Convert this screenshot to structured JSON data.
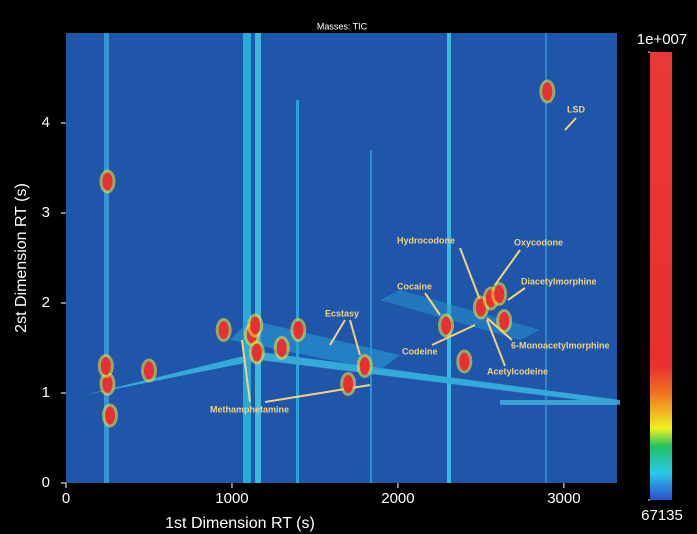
{
  "chart_data": {
    "type": "contour",
    "title": "Masses: TIC",
    "x_label": "1st Dimension RT (s)",
    "y_label": "2st Dimension RT (s)",
    "xlim": [
      0,
      3320
    ],
    "xticks": [
      0,
      1000,
      2000,
      3000
    ],
    "ylim": [
      0,
      5
    ],
    "yticks": [
      0,
      1,
      2,
      3,
      4
    ],
    "clim": [
      67135,
      10000000
    ],
    "cticks": [
      67135,
      {
        "value": 10000000,
        "label": "1e+007"
      }
    ],
    "x": [
      250,
      265,
      240,
      1120,
      1150,
      1140,
      2290,
      2900,
      250,
      2500,
      2560,
      2610,
      1700,
      1300,
      1800,
      2400,
      500,
      950,
      1400,
      2640
    ],
    "y": [
      1.1,
      0.75,
      1.3,
      1.65,
      1.45,
      1.75,
      1.75,
      4.35,
      3.35,
      1.95,
      2.05,
      2.1,
      1.1,
      1.5,
      1.3,
      1.35,
      1.25,
      1.7,
      1.7,
      1.8
    ],
    "annotations": [
      "LSD",
      "Hydrocodone",
      "Oxycodone",
      "Diacetylmorphine",
      "Cocaine",
      "Codeine",
      "6-Monoacetylmorphine",
      "Acetylcodeine",
      "Ecstasy",
      "Methamphetamine"
    ]
  }
}
